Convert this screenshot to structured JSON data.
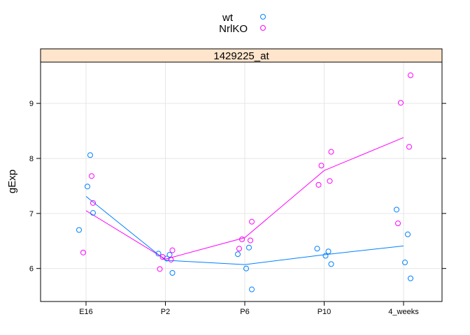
{
  "chart_data": {
    "type": "scatter",
    "panel_title": "1429225_at",
    "xlabel": "",
    "ylabel": "gExp",
    "categories": [
      "E16",
      "P2",
      "P6",
      "P10",
      "4_weeks"
    ],
    "yticks": [
      6,
      7,
      8,
      9
    ],
    "ylim": [
      5.4,
      9.75
    ],
    "grid": true,
    "legend_position": "top-center",
    "strip_color": "#ffe5cc",
    "series": [
      {
        "name": "wt",
        "color": "#0080ff",
        "points": [
          {
            "x": "E16",
            "y": 6.7
          },
          {
            "x": "E16",
            "y": 8.06
          },
          {
            "x": "E16",
            "y": 7.49
          },
          {
            "x": "E16",
            "y": 7.01
          },
          {
            "x": "P2",
            "y": 6.27
          },
          {
            "x": "P2",
            "y": 6.25
          },
          {
            "x": "P2",
            "y": 6.18
          },
          {
            "x": "P2",
            "y": 5.92
          },
          {
            "x": "P6",
            "y": 6.26
          },
          {
            "x": "P6",
            "y": 6.38
          },
          {
            "x": "P6",
            "y": 6.0
          },
          {
            "x": "P6",
            "y": 5.62
          },
          {
            "x": "P10",
            "y": 6.36
          },
          {
            "x": "P10",
            "y": 6.31
          },
          {
            "x": "P10",
            "y": 6.23
          },
          {
            "x": "P10",
            "y": 6.08
          },
          {
            "x": "4_weeks",
            "y": 7.07
          },
          {
            "x": "4_weeks",
            "y": 6.62
          },
          {
            "x": "4_weeks",
            "y": 6.11
          },
          {
            "x": "4_weeks",
            "y": 5.82
          }
        ],
        "means": [
          7.31,
          6.15,
          6.07,
          6.25,
          6.41
        ]
      },
      {
        "name": "NrlKO",
        "color": "#ff00ff",
        "points": [
          {
            "x": "E16",
            "y": 7.19
          },
          {
            "x": "E16",
            "y": 6.29
          },
          {
            "x": "E16",
            "y": 7.68
          },
          {
            "x": "P2",
            "y": 6.33
          },
          {
            "x": "P2",
            "y": 6.21
          },
          {
            "x": "P2",
            "y": 6.16
          },
          {
            "x": "P2",
            "y": 5.99
          },
          {
            "x": "P6",
            "y": 6.85
          },
          {
            "x": "P6",
            "y": 6.53
          },
          {
            "x": "P6",
            "y": 6.51
          },
          {
            "x": "P6",
            "y": 6.36
          },
          {
            "x": "P10",
            "y": 8.12
          },
          {
            "x": "P10",
            "y": 7.87
          },
          {
            "x": "P10",
            "y": 7.59
          },
          {
            "x": "P10",
            "y": 7.52
          },
          {
            "x": "4_weeks",
            "y": 9.51
          },
          {
            "x": "4_weeks",
            "y": 9.01
          },
          {
            "x": "4_weeks",
            "y": 8.21
          },
          {
            "x": "4_weeks",
            "y": 6.82
          }
        ],
        "means": [
          7.05,
          6.17,
          6.56,
          7.78,
          8.38
        ]
      }
    ]
  }
}
